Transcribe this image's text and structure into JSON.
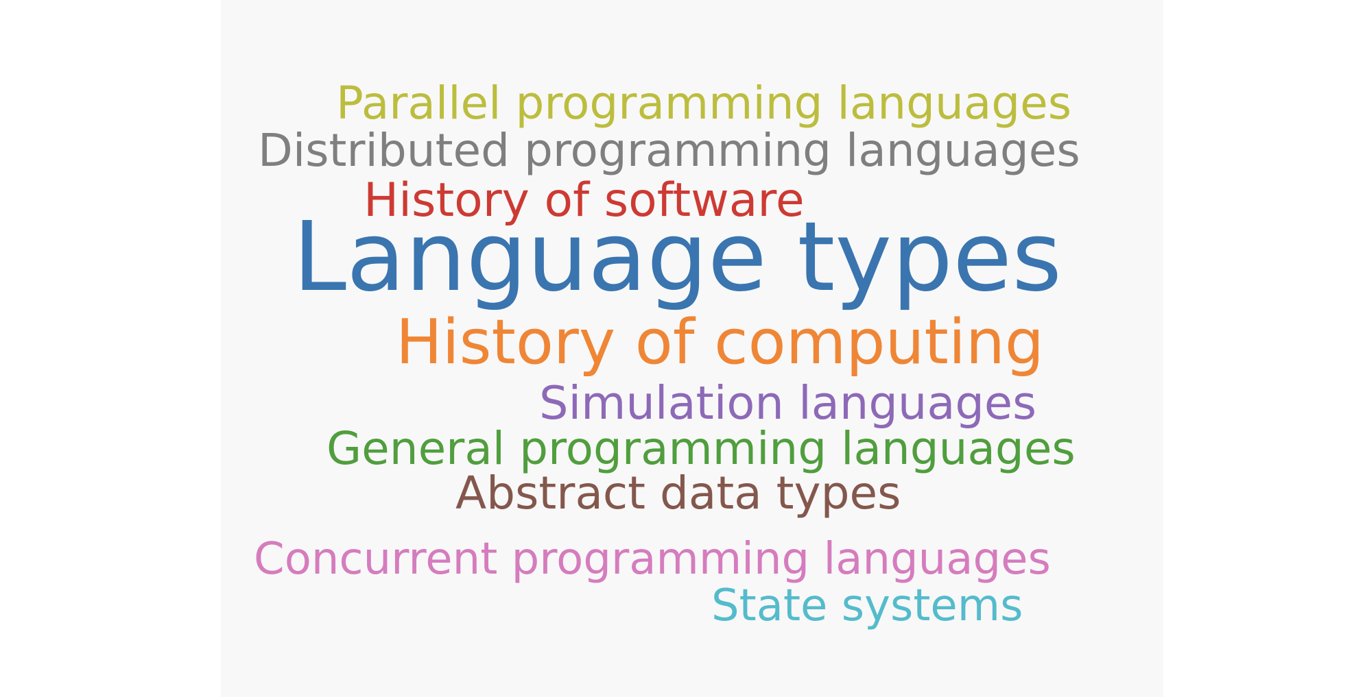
{
  "words": [
    {
      "text": "Parallel programming languages",
      "color": "#bcbd3e"
    },
    {
      "text": "Distributed programming languages",
      "color": "#7f7f7f"
    },
    {
      "text": "History of software",
      "color": "#cd3a33"
    },
    {
      "text": "Language types",
      "color": "#3a75af"
    },
    {
      "text": "History of computing",
      "color": "#ef8636"
    },
    {
      "text": "Simulation languages",
      "color": "#8d69b8"
    },
    {
      "text": "General programming languages",
      "color": "#509e3e"
    },
    {
      "text": "Abstract data types",
      "color": "#84574d"
    },
    {
      "text": "Concurrent programming languages",
      "color": "#d57cbe"
    },
    {
      "text": "State systems",
      "color": "#54bbcc"
    }
  ],
  "colors": {
    "page_background": "#ffffff",
    "canvas_background": "#f8f8f8"
  }
}
